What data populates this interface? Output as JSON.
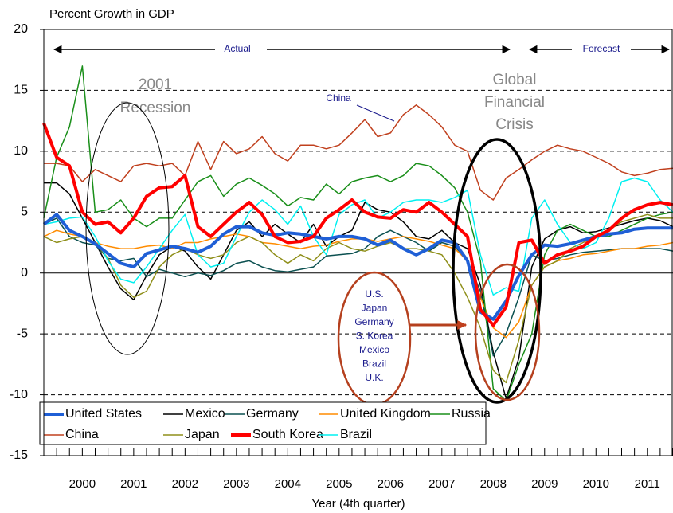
{
  "chart_data": {
    "type": "line",
    "y_title": "Percent Growth in GDP",
    "x_title": "Year (4th quarter)",
    "annotations": {
      "actual": "Actual",
      "forecast": "Forecast",
      "recession": [
        "2001",
        "Recession"
      ],
      "crisis": [
        "Global",
        "Financial",
        "Crisis"
      ],
      "china": "China",
      "callout": [
        "U.S.",
        "Japan",
        "Germany",
        "S. Korea",
        "Mexico",
        "Brazil",
        "U.K."
      ]
    },
    "x": [
      1999.75,
      2000,
      2000.25,
      2000.5,
      2000.75,
      2001,
      2001.25,
      2001.5,
      2001.75,
      2002,
      2002.25,
      2002.5,
      2002.75,
      2003,
      2003.25,
      2003.5,
      2003.75,
      2004,
      2004.25,
      2004.5,
      2004.75,
      2005,
      2005.25,
      2005.5,
      2005.75,
      2006,
      2006.25,
      2006.5,
      2006.75,
      2007,
      2007.25,
      2007.5,
      2007.75,
      2008,
      2008.25,
      2008.5,
      2008.75,
      2009,
      2009.25,
      2009.5,
      2009.75,
      2010,
      2010.25,
      2010.5,
      2010.75,
      2011,
      2011.25,
      2011.5,
      2011.75,
      2012
    ],
    "xlim": [
      1999.75,
      2012.0
    ],
    "xticks": [
      {
        "value": 2000.5,
        "label": "2000"
      },
      {
        "value": 2001.5,
        "label": "2001"
      },
      {
        "value": 2002.5,
        "label": "2002"
      },
      {
        "value": 2003.5,
        "label": "2003"
      },
      {
        "value": 2004.5,
        "label": "2004"
      },
      {
        "value": 2005.5,
        "label": "2005"
      },
      {
        "value": 2006.5,
        "label": "2006"
      },
      {
        "value": 2007.5,
        "label": "2007"
      },
      {
        "value": 2008.5,
        "label": "2008"
      },
      {
        "value": 2009.5,
        "label": "2009"
      },
      {
        "value": 2010.5,
        "label": "2010"
      },
      {
        "value": 2011.5,
        "label": "2011"
      }
    ],
    "ylim": [
      -15,
      20
    ],
    "yticks": [
      -15,
      -10,
      -5,
      0,
      5,
      10,
      15,
      20
    ],
    "grid": true,
    "series": [
      {
        "name": "United States",
        "color": "#1f5fd6",
        "line_width": 4,
        "values": [
          4.0,
          4.8,
          3.5,
          3.0,
          2.4,
          1.6,
          0.8,
          0.5,
          1.6,
          1.9,
          2.2,
          2.0,
          1.7,
          2.2,
          3.2,
          3.8,
          3.8,
          3.3,
          3.1,
          3.3,
          3.2,
          3.0,
          2.8,
          3.0,
          3.0,
          2.8,
          2.3,
          2.7,
          2.0,
          1.5,
          2.0,
          2.7,
          2.5,
          1.0,
          -3.2,
          -3.8,
          -2.3,
          -0.2,
          1.5,
          2.3,
          2.2,
          2.4,
          2.7,
          3.0,
          3.2,
          3.3,
          3.6,
          3.7,
          3.7,
          3.7
        ]
      },
      {
        "name": "Mexico",
        "color": "#000000",
        "line_width": 1.5,
        "values": [
          7.4,
          7.4,
          6.5,
          4.5,
          2.5,
          0.5,
          -1.3,
          -2.2,
          -0.2,
          1.5,
          2.2,
          1.8,
          0.5,
          -0.5,
          1.5,
          3.5,
          4.2,
          3.0,
          4.0,
          3.2,
          2.5,
          4.0,
          2.2,
          3.0,
          3.5,
          5.8,
          5.2,
          5.0,
          4.2,
          3.0,
          2.8,
          3.5,
          2.5,
          2.0,
          -1.0,
          -6.5,
          -10.3,
          -7.0,
          0.5,
          2.8,
          3.5,
          3.8,
          3.3,
          3.4,
          3.7,
          4.0,
          4.3,
          4.5,
          4.3,
          3.8
        ]
      },
      {
        "name": "Germany",
        "color": "#0b5050",
        "line_width": 1.5,
        "values": [
          4.0,
          4.5,
          3.0,
          2.5,
          2.3,
          1.2,
          1.0,
          1.2,
          -0.3,
          0.3,
          0.0,
          -0.3,
          0.0,
          -0.2,
          0.2,
          0.8,
          1.0,
          0.5,
          0.2,
          0.1,
          0.3,
          0.5,
          1.4,
          1.5,
          1.6,
          2.0,
          3.0,
          3.5,
          3.0,
          2.5,
          1.8,
          2.5,
          2.2,
          1.0,
          -1.5,
          -6.8,
          -5.0,
          -2.0,
          1.5,
          1.0,
          1.2,
          1.5,
          1.7,
          1.8,
          1.9,
          2.0,
          2.0,
          2.0,
          2.0,
          1.8
        ]
      },
      {
        "name": "United Kingdom",
        "color": "#ff8c00",
        "line_width": 1.5,
        "values": [
          3.0,
          3.5,
          3.2,
          3.0,
          2.5,
          2.2,
          2.0,
          2.0,
          2.2,
          2.3,
          2.0,
          2.5,
          2.5,
          2.8,
          3.0,
          3.2,
          3.0,
          2.5,
          2.4,
          2.2,
          2.0,
          2.2,
          2.3,
          2.6,
          2.8,
          2.8,
          2.6,
          2.8,
          3.0,
          2.8,
          2.6,
          2.3,
          2.0,
          1.0,
          -2.0,
          -4.5,
          -5.3,
          -4.0,
          -1.0,
          0.5,
          1.0,
          1.2,
          1.5,
          1.6,
          1.8,
          2.0,
          2.0,
          2.2,
          2.3,
          2.5
        ]
      },
      {
        "name": "Russia",
        "color": "#1a8f1a",
        "line_width": 1.5,
        "values": [
          4.5,
          9.5,
          12,
          17,
          5.0,
          5.2,
          6.0,
          4.5,
          3.8,
          4.5,
          4.5,
          6.0,
          7.5,
          8.0,
          6.3,
          7.3,
          7.8,
          7.2,
          6.5,
          5.5,
          6.2,
          6.0,
          7.3,
          6.5,
          7.5,
          7.8,
          8.0,
          7.5,
          8.0,
          9.0,
          8.8,
          8.0,
          7.0,
          5.0,
          1.0,
          -9.5,
          -10.5,
          -7.5,
          -5.0,
          1.5,
          3.5,
          4.0,
          3.5,
          3.0,
          3.0,
          3.5,
          4.0,
          4.5,
          4.8,
          5.0
        ]
      },
      {
        "name": "China",
        "color": "#c0401e",
        "line_width": 1.5,
        "values": [
          9.0,
          9.0,
          8.8,
          7.5,
          8.5,
          8.0,
          7.5,
          8.8,
          9.0,
          8.8,
          9.0,
          8.0,
          10.8,
          8.5,
          10.8,
          9.8,
          10.2,
          11.2,
          9.8,
          9.2,
          10.5,
          10.5,
          10.2,
          10.5,
          11.5,
          12.6,
          11.2,
          11.5,
          13.0,
          13.8,
          13.0,
          12.0,
          10.5,
          10.0,
          6.8,
          6.0,
          7.8,
          8.5,
          9.3,
          10.0,
          10.5,
          10.2,
          10.0,
          9.5,
          9.0,
          8.3,
          8.0,
          8.2,
          8.5,
          8.6
        ]
      },
      {
        "name": "Japan",
        "color": "#8f8f1a",
        "line_width": 1.5,
        "values": [
          3.0,
          2.5,
          2.8,
          3.0,
          2.5,
          1.2,
          -1.0,
          -2.0,
          -1.5,
          0.5,
          1.5,
          2.0,
          1.5,
          1.2,
          1.5,
          2.5,
          3.0,
          2.5,
          1.5,
          0.8,
          1.5,
          1.0,
          2.0,
          2.5,
          2.0,
          1.8,
          2.2,
          2.5,
          2.0,
          2.0,
          1.8,
          1.5,
          0.0,
          -2.0,
          -4.5,
          -8.0,
          -9.0,
          -5.5,
          -1.0,
          0.5,
          1.0,
          2.0,
          2.5,
          3.0,
          3.5,
          4.2,
          4.5,
          4.8,
          4.5,
          4.5
        ]
      },
      {
        "name": "South Korea",
        "color": "#ff0000",
        "line_width": 4,
        "values": [
          12.3,
          9.5,
          8.8,
          5.0,
          4.0,
          4.2,
          3.3,
          4.5,
          6.3,
          7.0,
          7.1,
          8.0,
          3.8,
          3.0,
          4.0,
          5.0,
          5.8,
          4.8,
          3.0,
          2.5,
          2.6,
          3.0,
          4.5,
          5.2,
          6.0,
          5.0,
          4.6,
          4.5,
          5.2,
          5.0,
          5.8,
          5.0,
          4.0,
          3.0,
          -3.0,
          -4.3,
          -2.8,
          2.5,
          2.7,
          0.8,
          1.5,
          1.8,
          2.2,
          3.0,
          3.5,
          4.5,
          5.2,
          5.6,
          5.8,
          5.6
        ]
      },
      {
        "name": "Brazil",
        "color": "#00f0f0",
        "line_width": 1.5,
        "values": [
          4.0,
          4.2,
          4.5,
          4.6,
          3.0,
          1.0,
          -0.5,
          -0.8,
          0.5,
          2.0,
          3.5,
          4.8,
          1.5,
          0.5,
          0.8,
          3.0,
          5.0,
          6.0,
          5.2,
          4.0,
          5.5,
          3.0,
          1.5,
          4.8,
          5.6,
          6.0,
          4.5,
          5.0,
          5.8,
          6.0,
          6.0,
          5.8,
          6.2,
          6.8,
          1.5,
          -1.8,
          -1.2,
          -1.5,
          4.5,
          6.0,
          4.0,
          2.5,
          2.0,
          2.5,
          4.5,
          7.5,
          7.8,
          7.5,
          6.0,
          5.0
        ]
      }
    ]
  }
}
